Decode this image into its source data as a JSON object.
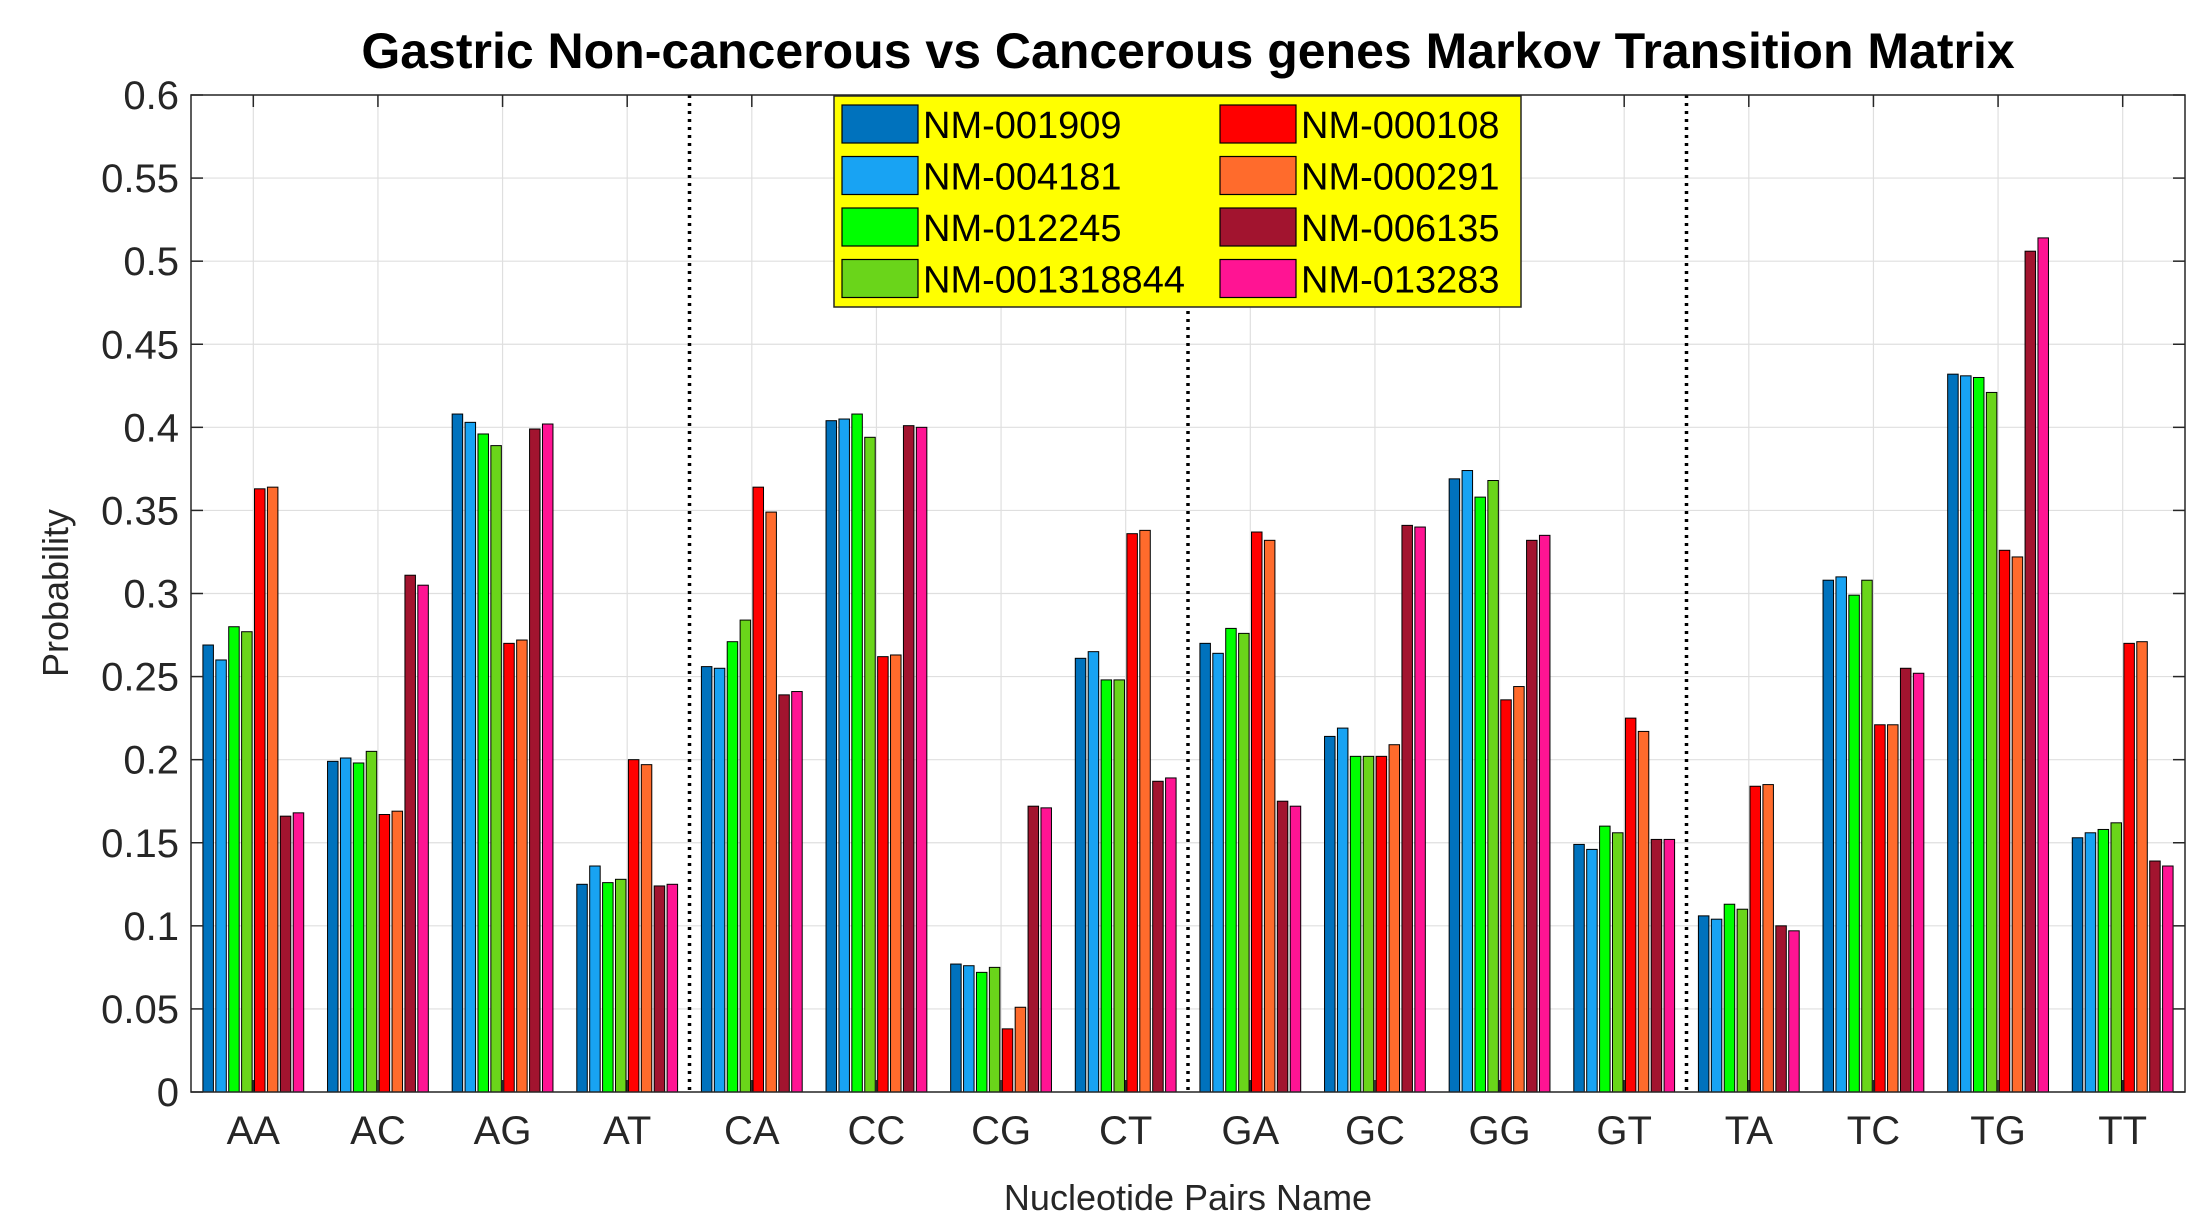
{
  "chart_data": {
    "type": "bar",
    "title": "Gastric Non-cancerous vs Cancerous genes Markov Transition Matrix",
    "xlabel": "Nucleotide Pairs Name",
    "ylabel": "Probability",
    "ylim": [
      0,
      0.6
    ],
    "yticks": [
      0,
      0.05,
      0.1,
      0.15,
      0.2,
      0.25,
      0.3,
      0.35,
      0.4,
      0.45,
      0.5,
      0.55,
      0.6
    ],
    "ytick_labels": [
      "0",
      "0.05",
      "0.1",
      "0.15",
      "0.2",
      "0.25",
      "0.3",
      "0.35",
      "0.4",
      "0.45",
      "0.5",
      "0.55",
      "0.6"
    ],
    "grid": true,
    "legend_position": "top-center",
    "separators_after": [
      "AT",
      "CT",
      "GT"
    ],
    "categories": [
      "AA",
      "AC",
      "AG",
      "AT",
      "CA",
      "CC",
      "CG",
      "CT",
      "GA",
      "GC",
      "GG",
      "GT",
      "TA",
      "TC",
      "TG",
      "TT"
    ],
    "series": [
      {
        "name": "NM-001909",
        "color": "#0072BD",
        "values": [
          0.269,
          0.199,
          0.408,
          0.125,
          0.256,
          0.404,
          0.077,
          0.261,
          0.27,
          0.214,
          0.369,
          0.149,
          0.106,
          0.308,
          0.432,
          0.153
        ]
      },
      {
        "name": "NM-004181",
        "color": "#18A3F3",
        "values": [
          0.26,
          0.201,
          0.403,
          0.136,
          0.255,
          0.405,
          0.076,
          0.265,
          0.264,
          0.219,
          0.374,
          0.146,
          0.104,
          0.31,
          0.431,
          0.156
        ]
      },
      {
        "name": "NM-012245",
        "color": "#00FF00",
        "values": [
          0.28,
          0.198,
          0.396,
          0.126,
          0.271,
          0.408,
          0.072,
          0.248,
          0.279,
          0.202,
          0.358,
          0.16,
          0.113,
          0.299,
          0.43,
          0.158
        ]
      },
      {
        "name": "NM-001318844",
        "color": "#6AD51A",
        "values": [
          0.277,
          0.205,
          0.389,
          0.128,
          0.284,
          0.394,
          0.075,
          0.248,
          0.276,
          0.202,
          0.368,
          0.156,
          0.11,
          0.308,
          0.421,
          0.162
        ]
      },
      {
        "name": "NM-000108",
        "color": "#FF0000",
        "values": [
          0.363,
          0.167,
          0.27,
          0.2,
          0.364,
          0.262,
          0.038,
          0.336,
          0.337,
          0.202,
          0.236,
          0.225,
          0.184,
          0.221,
          0.326,
          0.27
        ]
      },
      {
        "name": "NM-000291",
        "color": "#FF6B2C",
        "values": [
          0.364,
          0.169,
          0.272,
          0.197,
          0.349,
          0.263,
          0.051,
          0.338,
          0.332,
          0.209,
          0.244,
          0.217,
          0.185,
          0.221,
          0.322,
          0.271
        ]
      },
      {
        "name": "NM-006135",
        "color": "#A2142F",
        "values": [
          0.166,
          0.311,
          0.399,
          0.124,
          0.239,
          0.401,
          0.172,
          0.187,
          0.175,
          0.341,
          0.332,
          0.152,
          0.1,
          0.255,
          0.506,
          0.139
        ]
      },
      {
        "name": "NM-013283",
        "color": "#FF1493",
        "values": [
          0.168,
          0.305,
          0.402,
          0.125,
          0.241,
          0.4,
          0.171,
          0.189,
          0.172,
          0.34,
          0.335,
          0.152,
          0.097,
          0.252,
          0.514,
          0.136
        ]
      }
    ]
  }
}
